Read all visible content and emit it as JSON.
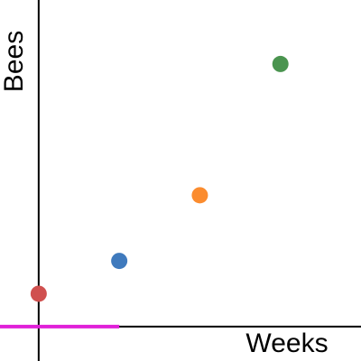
{
  "chart_data": {
    "type": "scatter",
    "xlabel": "Weeks",
    "ylabel": "Bees",
    "x": [
      0,
      1,
      2,
      3
    ],
    "values": [
      1,
      2,
      4,
      8
    ],
    "colors": [
      "#d0504f",
      "#3f7abd",
      "#fb8c2f",
      "#4a944f"
    ],
    "line": {
      "x": [
        -0.48,
        1
      ],
      "values": [
        0,
        0
      ],
      "color": "#e01fd8"
    },
    "xlim": [
      -0.48,
      4.0
    ],
    "ylim": [
      -1.05,
      9.95
    ]
  }
}
